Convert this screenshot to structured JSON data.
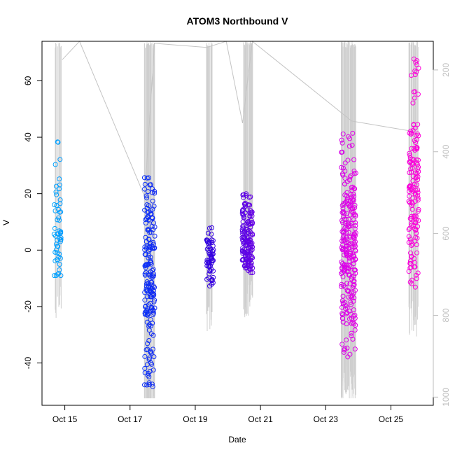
{
  "chart_data": {
    "type": "scatter",
    "title": "ATOM3 Northbound V",
    "xlabel": "Date",
    "ylabel": "V",
    "x_ticks": [
      "Oct 15",
      "Oct 17",
      "Oct 19",
      "Oct 21",
      "Oct 23",
      "Oct 25"
    ],
    "x_tick_days": [
      15,
      17,
      19,
      21,
      23,
      25
    ],
    "xlim_days": [
      14.3,
      26.3
    ],
    "ylim": [
      -55,
      74
    ],
    "y_ticks": [
      -40,
      -20,
      0,
      20,
      40,
      60
    ],
    "secondary_axis": {
      "side": "right",
      "ticks": [
        200,
        400,
        600,
        800,
        1000
      ],
      "range": [
        130,
        1020
      ],
      "reversed": true,
      "color": "#bdbdbd"
    },
    "point_color_scale": [
      "#00a8ff",
      "#0040ff",
      "#2800e0",
      "#8000e8",
      "#e000e8",
      "#ff00d8"
    ],
    "clusters": [
      {
        "day": 14.78,
        "width": 0.22,
        "v_min": -9,
        "v_max": 40,
        "v_center": 2,
        "count": 55
      },
      {
        "day": 17.6,
        "width": 0.32,
        "v_min": -49,
        "v_max": 28,
        "v_center": -8,
        "count": 190
      },
      {
        "day": 19.45,
        "width": 0.22,
        "v_min": -13,
        "v_max": 9,
        "v_center": -2,
        "count": 60
      },
      {
        "day": 20.6,
        "width": 0.32,
        "v_min": -8,
        "v_max": 20,
        "v_center": 2,
        "count": 150
      },
      {
        "day": 23.7,
        "width": 0.45,
        "v_min": -38,
        "v_max": 42,
        "v_center": -3,
        "count": 260
      },
      {
        "day": 25.7,
        "width": 0.3,
        "v_min": -15,
        "v_max": 70,
        "v_center": 20,
        "count": 150
      }
    ],
    "grey_line_points": [
      [
        14.92,
        175
      ],
      [
        15.45,
        130
      ],
      [
        17.45,
        510
      ],
      [
        17.75,
        135
      ],
      [
        19.35,
        145
      ],
      [
        19.95,
        120
      ],
      [
        20.45,
        330
      ],
      [
        20.75,
        125
      ],
      [
        23.8,
        325
      ],
      [
        25.65,
        350
      ]
    ]
  }
}
